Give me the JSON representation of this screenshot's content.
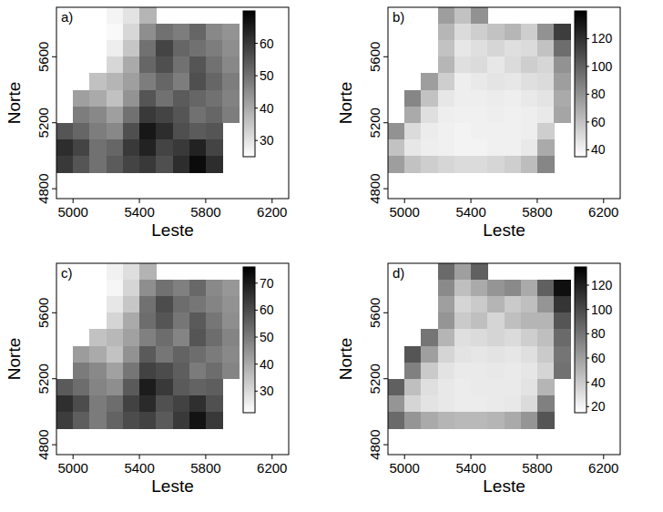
{
  "chart_data": [
    {
      "type": "heatmap",
      "panel_label": "a)",
      "x_label": "Leste",
      "y_label": "Norte",
      "xlim": [
        4900,
        6300
      ],
      "ylim": [
        4740,
        5900
      ],
      "xticks": [
        5000,
        5400,
        5800,
        6200
      ],
      "yticks": [
        4800,
        5200,
        5600
      ],
      "x": [
        4950,
        5050,
        5150,
        5250,
        5350,
        5450,
        5550,
        5650,
        5750,
        5850,
        5950
      ],
      "y": [
        5850,
        5750,
        5650,
        5550,
        5450,
        5350,
        5250,
        5150,
        5050,
        4950
      ],
      "cells": [
        [
          null,
          null,
          null,
          27,
          30,
          38,
          null,
          null,
          null,
          null,
          null
        ],
        [
          null,
          null,
          null,
          26,
          32,
          45,
          50,
          48,
          52,
          46,
          44
        ],
        [
          null,
          null,
          null,
          28,
          35,
          50,
          58,
          52,
          50,
          48,
          45
        ],
        [
          null,
          null,
          null,
          32,
          40,
          52,
          56,
          50,
          55,
          50,
          46
        ],
        [
          null,
          null,
          36,
          38,
          42,
          48,
          52,
          48,
          56,
          52,
          48
        ],
        [
          null,
          42,
          40,
          36,
          44,
          55,
          50,
          54,
          52,
          50,
          47
        ],
        [
          null,
          48,
          46,
          42,
          50,
          60,
          58,
          55,
          50,
          52,
          48
        ],
        [
          55,
          52,
          48,
          46,
          56,
          66,
          62,
          56,
          54,
          55,
          null
        ],
        [
          62,
          58,
          50,
          52,
          60,
          64,
          58,
          60,
          64,
          58,
          null
        ],
        [
          60,
          55,
          50,
          54,
          58,
          60,
          56,
          62,
          68,
          62,
          null
        ]
      ],
      "colorbar": {
        "range": [
          25,
          70
        ],
        "ticks": [
          30,
          40,
          50,
          60
        ]
      }
    },
    {
      "type": "heatmap",
      "panel_label": "b)",
      "x_label": "Leste",
      "y_label": "Norte",
      "xlim": [
        4900,
        6300
      ],
      "ylim": [
        4740,
        5900
      ],
      "xticks": [
        5000,
        5400,
        5800,
        6200
      ],
      "yticks": [
        4800,
        5200,
        5600
      ],
      "x": [
        4950,
        5050,
        5150,
        5250,
        5350,
        5450,
        5550,
        5650,
        5750,
        5850,
        5950
      ],
      "y": [
        5850,
        5750,
        5650,
        5550,
        5450,
        5350,
        5250,
        5150,
        5050,
        4950
      ],
      "cells": [
        [
          null,
          null,
          null,
          75,
          60,
          80,
          null,
          null,
          null,
          null,
          null
        ],
        [
          null,
          null,
          null,
          65,
          50,
          55,
          60,
          65,
          55,
          80,
          115
        ],
        [
          null,
          null,
          null,
          60,
          45,
          48,
          52,
          48,
          50,
          60,
          95
        ],
        [
          null,
          null,
          null,
          65,
          48,
          50,
          45,
          50,
          55,
          52,
          80
        ],
        [
          null,
          null,
          75,
          55,
          42,
          44,
          46,
          45,
          48,
          50,
          75
        ],
        [
          null,
          85,
          60,
          45,
          42,
          42,
          43,
          42,
          44,
          46,
          70
        ],
        [
          null,
          70,
          48,
          42,
          41,
          41,
          42,
          41,
          42,
          44,
          72
        ],
        [
          80,
          50,
          43,
          41,
          40,
          41,
          41,
          41,
          42,
          55,
          null
        ],
        [
          60,
          45,
          42,
          41,
          40,
          40,
          41,
          41,
          44,
          70,
          null
        ],
        [
          75,
          60,
          55,
          52,
          50,
          50,
          52,
          55,
          62,
          85,
          null
        ]
      ],
      "colorbar": {
        "range": [
          35,
          140
        ],
        "ticks": [
          40,
          60,
          80,
          100,
          120
        ]
      }
    },
    {
      "type": "heatmap",
      "panel_label": "c)",
      "x_label": "Leste",
      "y_label": "Norte",
      "xlim": [
        4900,
        6300
      ],
      "ylim": [
        4740,
        5900
      ],
      "xticks": [
        5000,
        5400,
        5800,
        6200
      ],
      "yticks": [
        4800,
        5200,
        5600
      ],
      "x": [
        4950,
        5050,
        5150,
        5250,
        5350,
        5450,
        5550,
        5650,
        5750,
        5850,
        5950
      ],
      "y": [
        5850,
        5750,
        5650,
        5550,
        5450,
        5350,
        5250,
        5150,
        5050,
        4950
      ],
      "cells": [
        [
          null,
          null,
          null,
          25,
          29,
          38,
          null,
          null,
          null,
          null,
          null
        ],
        [
          null,
          null,
          null,
          24,
          31,
          46,
          52,
          49,
          54,
          47,
          44
        ],
        [
          null,
          null,
          null,
          27,
          34,
          52,
          60,
          53,
          51,
          48,
          45
        ],
        [
          null,
          null,
          null,
          31,
          40,
          53,
          58,
          51,
          57,
          51,
          46
        ],
        [
          null,
          null,
          35,
          37,
          42,
          49,
          53,
          48,
          58,
          53,
          48
        ],
        [
          null,
          43,
          40,
          35,
          45,
          57,
          51,
          55,
          53,
          50,
          47
        ],
        [
          null,
          50,
          47,
          42,
          51,
          62,
          60,
          56,
          50,
          53,
          48
        ],
        [
          57,
          53,
          48,
          46,
          57,
          70,
          64,
          57,
          55,
          56,
          null
        ],
        [
          66,
          60,
          50,
          53,
          62,
          67,
          59,
          62,
          66,
          59,
          null
        ],
        [
          63,
          56,
          50,
          55,
          60,
          62,
          57,
          64,
          72,
          64,
          null
        ]
      ],
      "colorbar": {
        "range": [
          22,
          76
        ],
        "ticks": [
          30,
          40,
          50,
          60,
          70
        ]
      }
    },
    {
      "type": "heatmap",
      "panel_label": "d)",
      "x_label": "Leste",
      "y_label": "Norte",
      "xlim": [
        4900,
        6300
      ],
      "ylim": [
        4740,
        5900
      ],
      "xticks": [
        5000,
        5400,
        5800,
        6200
      ],
      "yticks": [
        4800,
        5200,
        5600
      ],
      "x": [
        4950,
        5050,
        5150,
        5250,
        5350,
        5450,
        5550,
        5650,
        5750,
        5850,
        5950
      ],
      "y": [
        5850,
        5750,
        5650,
        5550,
        5450,
        5350,
        5250,
        5150,
        5050,
        4950
      ],
      "cells": [
        [
          null,
          null,
          null,
          85,
          60,
          90,
          null,
          null,
          null,
          null,
          null
        ],
        [
          null,
          null,
          null,
          70,
          45,
          55,
          65,
          70,
          55,
          90,
          128
        ],
        [
          null,
          null,
          null,
          60,
          35,
          40,
          50,
          40,
          45,
          65,
          110
        ],
        [
          null,
          null,
          null,
          65,
          40,
          45,
          35,
          45,
          50,
          50,
          95
        ],
        [
          null,
          null,
          80,
          50,
          30,
          32,
          35,
          32,
          38,
          45,
          85
        ],
        [
          null,
          95,
          60,
          35,
          28,
          27,
          28,
          27,
          30,
          40,
          80
        ],
        [
          null,
          75,
          40,
          28,
          25,
          25,
          26,
          25,
          27,
          35,
          82
        ],
        [
          90,
          45,
          30,
          26,
          24,
          25,
          25,
          25,
          28,
          50,
          null
        ],
        [
          65,
          35,
          28,
          26,
          24,
          24,
          25,
          26,
          32,
          75,
          null
        ],
        [
          85,
          65,
          55,
          50,
          48,
          48,
          50,
          55,
          65,
          95,
          null
        ]
      ],
      "colorbar": {
        "range": [
          15,
          135
        ],
        "ticks": [
          20,
          40,
          60,
          80,
          100,
          120
        ]
      }
    }
  ]
}
